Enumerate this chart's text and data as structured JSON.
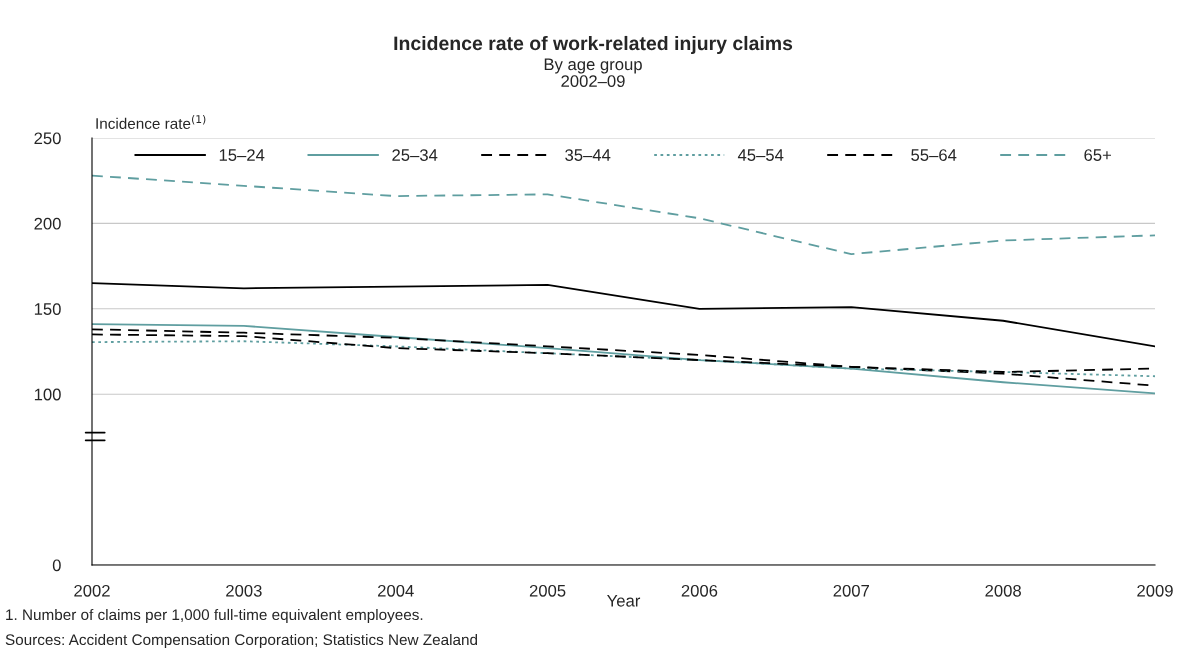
{
  "chart_data": {
    "type": "line",
    "title": "Incidence rate of work-related injury claims",
    "subtitle": "By age group\n2002–09",
    "xlabel": "Year",
    "ylabel": "Incidence rate$^{(1)}$",
    "x": [
      2002,
      2003,
      2004,
      2005,
      2006,
      2007,
      2008,
      2009
    ],
    "series": [
      {
        "name": "15–24",
        "color": "#000000",
        "line_style": "solid",
        "values": [
          165,
          162,
          163,
          164,
          150,
          151,
          143,
          128
        ]
      },
      {
        "name": "25–34",
        "color": "#5f9ea0",
        "line_style": "solid",
        "values": [
          141,
          140,
          133.5,
          127,
          120,
          115,
          107,
          100.5
        ]
      },
      {
        "name": "35–44",
        "color": "#000000",
        "line_style": "dashed",
        "values": [
          138,
          136,
          133,
          128,
          123,
          116,
          112,
          105
        ]
      },
      {
        "name": "45–54",
        "color": "#5f9ea0",
        "line_style": "dotted",
        "values": [
          130.5,
          131,
          128,
          124,
          120,
          115,
          113,
          110.5
        ]
      },
      {
        "name": "55–64",
        "color": "#000000",
        "line_style": "dashed",
        "values": [
          135,
          134,
          127,
          124,
          120,
          116,
          113,
          115
        ]
      },
      {
        "name": "65+",
        "color": "#5f9ea0",
        "line_style": "dashed",
        "values": [
          228,
          222,
          216,
          217,
          203,
          182,
          190,
          193
        ]
      }
    ],
    "xlim": [
      2002,
      2009
    ],
    "xticks": [
      2002,
      2003,
      2004,
      2005,
      2006,
      2007,
      2008,
      2009
    ],
    "ylim": [
      0,
      250
    ],
    "yticks": [
      0,
      100,
      150,
      200,
      250
    ],
    "grid": "y",
    "legend": "top",
    "marker": "none",
    "annotations": [
      "1. Number of claims per 1,000 full-time equivalent employees.",
      "Sources: Accident Compensation Corporation; Statistics New Zealand"
    ]
  }
}
